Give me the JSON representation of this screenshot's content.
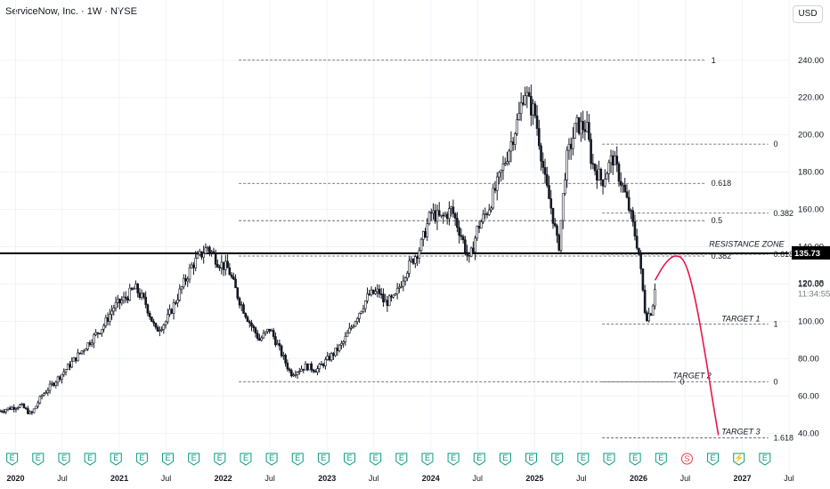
{
  "header": {
    "title": "ServiceNow, Inc. · 1W · NYSE",
    "currency_button": "USD"
  },
  "price_label": {
    "value": "135.73",
    "color": "#000000"
  },
  "last_price": {
    "value": "120.38",
    "countdown": "11:34:55"
  },
  "colors": {
    "up": "#089981",
    "down": "#131722",
    "candle": "#131722",
    "projection": "#e8144a",
    "earnings": "#089981",
    "dividend": "#f23645"
  },
  "chart_data": {
    "type": "candlestick",
    "yaxis": {
      "ylim": [
        33,
        258
      ],
      "ticks": [
        "240.00",
        "220.00",
        "200.00",
        "180.00",
        "160.00",
        "140.00",
        "120.00",
        "100.00",
        "80.00",
        "60.00",
        "40.00"
      ],
      "tick_values": [
        240,
        220,
        200,
        180,
        160,
        140,
        120,
        100,
        80,
        60,
        40
      ]
    },
    "xaxis": {
      "range": [
        2019.9,
        2027.5
      ],
      "ticks": [
        {
          "label": "2020",
          "t": 2020.05,
          "bold": true
        },
        {
          "label": "Jul",
          "t": 2020.5,
          "bold": false
        },
        {
          "label": "2021",
          "t": 2021.05,
          "bold": true
        },
        {
          "label": "Jul",
          "t": 2021.5,
          "bold": false
        },
        {
          "label": "2022",
          "t": 2022.05,
          "bold": true
        },
        {
          "label": "Jul",
          "t": 2022.5,
          "bold": false
        },
        {
          "label": "2023",
          "t": 2023.05,
          "bold": true
        },
        {
          "label": "Jul",
          "t": 2023.5,
          "bold": false
        },
        {
          "label": "2024",
          "t": 2024.05,
          "bold": true
        },
        {
          "label": "Jul",
          "t": 2024.5,
          "bold": false
        },
        {
          "label": "2025",
          "t": 2025.05,
          "bold": true
        },
        {
          "label": "Jul",
          "t": 2025.5,
          "bold": false
        },
        {
          "label": "2026",
          "t": 2026.05,
          "bold": true
        },
        {
          "label": "Jul",
          "t": 2026.5,
          "bold": false
        },
        {
          "label": "2027",
          "t": 2027.05,
          "bold": true
        },
        {
          "label": "Jul",
          "t": 2027.5,
          "bold": false
        }
      ]
    },
    "price_path": [
      [
        2019.9,
        52
      ],
      [
        2020.1,
        55
      ],
      [
        2020.2,
        50
      ],
      [
        2020.3,
        60
      ],
      [
        2020.5,
        72
      ],
      [
        2020.7,
        85
      ],
      [
        2020.9,
        98
      ],
      [
        2021.0,
        108
      ],
      [
        2021.1,
        112
      ],
      [
        2021.2,
        118
      ],
      [
        2021.3,
        110
      ],
      [
        2021.4,
        95
      ],
      [
        2021.5,
        100
      ],
      [
        2021.6,
        112
      ],
      [
        2021.75,
        130
      ],
      [
        2021.9,
        140
      ],
      [
        2022.0,
        132
      ],
      [
        2022.1,
        128
      ],
      [
        2022.2,
        112
      ],
      [
        2022.3,
        100
      ],
      [
        2022.4,
        90
      ],
      [
        2022.5,
        96
      ],
      [
        2022.6,
        84
      ],
      [
        2022.7,
        72
      ],
      [
        2022.85,
        76
      ],
      [
        2022.95,
        74
      ],
      [
        2023.1,
        82
      ],
      [
        2023.2,
        88
      ],
      [
        2023.35,
        104
      ],
      [
        2023.45,
        114
      ],
      [
        2023.55,
        116
      ],
      [
        2023.6,
        110
      ],
      [
        2023.7,
        112
      ],
      [
        2023.8,
        126
      ],
      [
        2023.95,
        140
      ],
      [
        2024.05,
        158
      ],
      [
        2024.15,
        155
      ],
      [
        2024.25,
        160
      ],
      [
        2024.35,
        145
      ],
      [
        2024.42,
        132
      ],
      [
        2024.5,
        150
      ],
      [
        2024.6,
        160
      ],
      [
        2024.7,
        175
      ],
      [
        2024.8,
        192
      ],
      [
        2024.9,
        210
      ],
      [
        2024.95,
        225
      ],
      [
        2025.0,
        216
      ],
      [
        2025.05,
        212
      ],
      [
        2025.1,
        195
      ],
      [
        2025.15,
        175
      ],
      [
        2025.22,
        158
      ],
      [
        2025.28,
        138
      ],
      [
        2025.35,
        185
      ],
      [
        2025.45,
        205
      ],
      [
        2025.55,
        204
      ],
      [
        2025.6,
        185
      ],
      [
        2025.7,
        175
      ],
      [
        2025.8,
        188
      ],
      [
        2025.9,
        172
      ],
      [
        2025.97,
        158
      ],
      [
        2026.05,
        138
      ],
      [
        2026.12,
        102
      ],
      [
        2026.18,
        106
      ],
      [
        2026.21,
        120
      ]
    ],
    "fib_sets": [
      {
        "name": "fib_a",
        "x": [
          2022.2,
          2026.7
        ],
        "label_t": 2026.75,
        "levels": [
          {
            "label": "1",
            "value": 240
          },
          {
            "label": "0.618",
            "value": 174
          },
          {
            "label": "0.5",
            "value": 154
          },
          {
            "label": "0.382",
            "value": 135
          }
        ]
      },
      {
        "name": "fib_b",
        "x": [
          2025.7,
          2027.3
        ],
        "label_t": 2027.35,
        "levels": [
          {
            "label": "0",
            "value": 195
          },
          {
            "label": "0.382",
            "value": 158
          },
          {
            "label": "0.618",
            "value": 136
          },
          {
            "label": "1",
            "value": 98.5
          },
          {
            "label": "0",
            "value": 67.5
          },
          {
            "label": "1.618",
            "value": 37.5
          }
        ]
      }
    ],
    "resistance_line": 136.5,
    "annotations": [
      {
        "label": "RESISTANCE ZONE",
        "t": 2026.73,
        "value": 140
      },
      {
        "label": "TARGET 1",
        "t": 2026.85,
        "value": 100
      },
      {
        "label": "TARGET 2",
        "t": 2026.38,
        "value": 69.5
      },
      {
        "label": "TARGET 3",
        "t": 2026.85,
        "value": 39.5
      }
    ],
    "extra_lines": [
      {
        "x": [
          2022.2,
          2026.4
        ],
        "value": 67.5,
        "label": "0",
        "label_t": 2026.45
      }
    ],
    "projection": [
      [
        2026.21,
        122
      ],
      [
        2026.3,
        131
      ],
      [
        2026.4,
        136
      ],
      [
        2026.5,
        133
      ],
      [
        2026.6,
        112
      ],
      [
        2026.7,
        80
      ],
      [
        2026.78,
        52
      ],
      [
        2026.82,
        39
      ]
    ],
    "events": [
      "E",
      "E",
      "E",
      "E",
      "E",
      "E",
      "E",
      "E",
      "E",
      "E",
      "E",
      "E",
      "E",
      "E",
      "E",
      "E",
      "E",
      "E",
      "E",
      "E",
      "E",
      "E",
      "E",
      "E",
      "E",
      "E",
      "S",
      "E",
      "⚡",
      "E"
    ]
  }
}
